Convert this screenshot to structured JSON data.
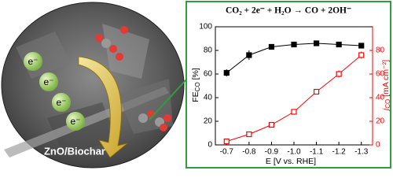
{
  "chart_data": {
    "type": "line",
    "title": "CO₂ + 2e⁻ + H₂O → CO + 2OH⁻",
    "xlabel": "E [V vs. RHE]",
    "ylabel": {
      "main": "FE",
      "sub": "CO",
      "unit": " [%]"
    },
    "y2label": {
      "main": "j",
      "sub": "CO",
      "unit": " [mA cm⁻²]"
    },
    "categories": [
      "-0.7",
      "-0.8",
      "-0.9",
      "-1.0",
      "-1.1",
      "-1.2",
      "-1.3"
    ],
    "series": [
      {
        "name": "FE",
        "color": "#000000",
        "axis": "y",
        "values": [
          61,
          76,
          83,
          85,
          86,
          85,
          84
        ],
        "errors": [
          3,
          4,
          1,
          1,
          1,
          1,
          1
        ]
      },
      {
        "name": "j",
        "color": "#ff0000",
        "axis": "y2",
        "values": [
          3,
          9,
          17,
          28,
          45,
          60,
          76
        ],
        "errors": [
          1,
          1,
          1,
          1,
          2,
          3,
          3
        ]
      }
    ],
    "ylim": [
      0,
      100
    ],
    "yticks": [
      0,
      20,
      40,
      60,
      80,
      100
    ],
    "y2lim": [
      0,
      100
    ],
    "y2ticks": [
      0,
      20,
      40,
      60,
      80
    ]
  },
  "image_labels": {
    "electron": "e⁻",
    "material": "ZnO/Biochar"
  }
}
